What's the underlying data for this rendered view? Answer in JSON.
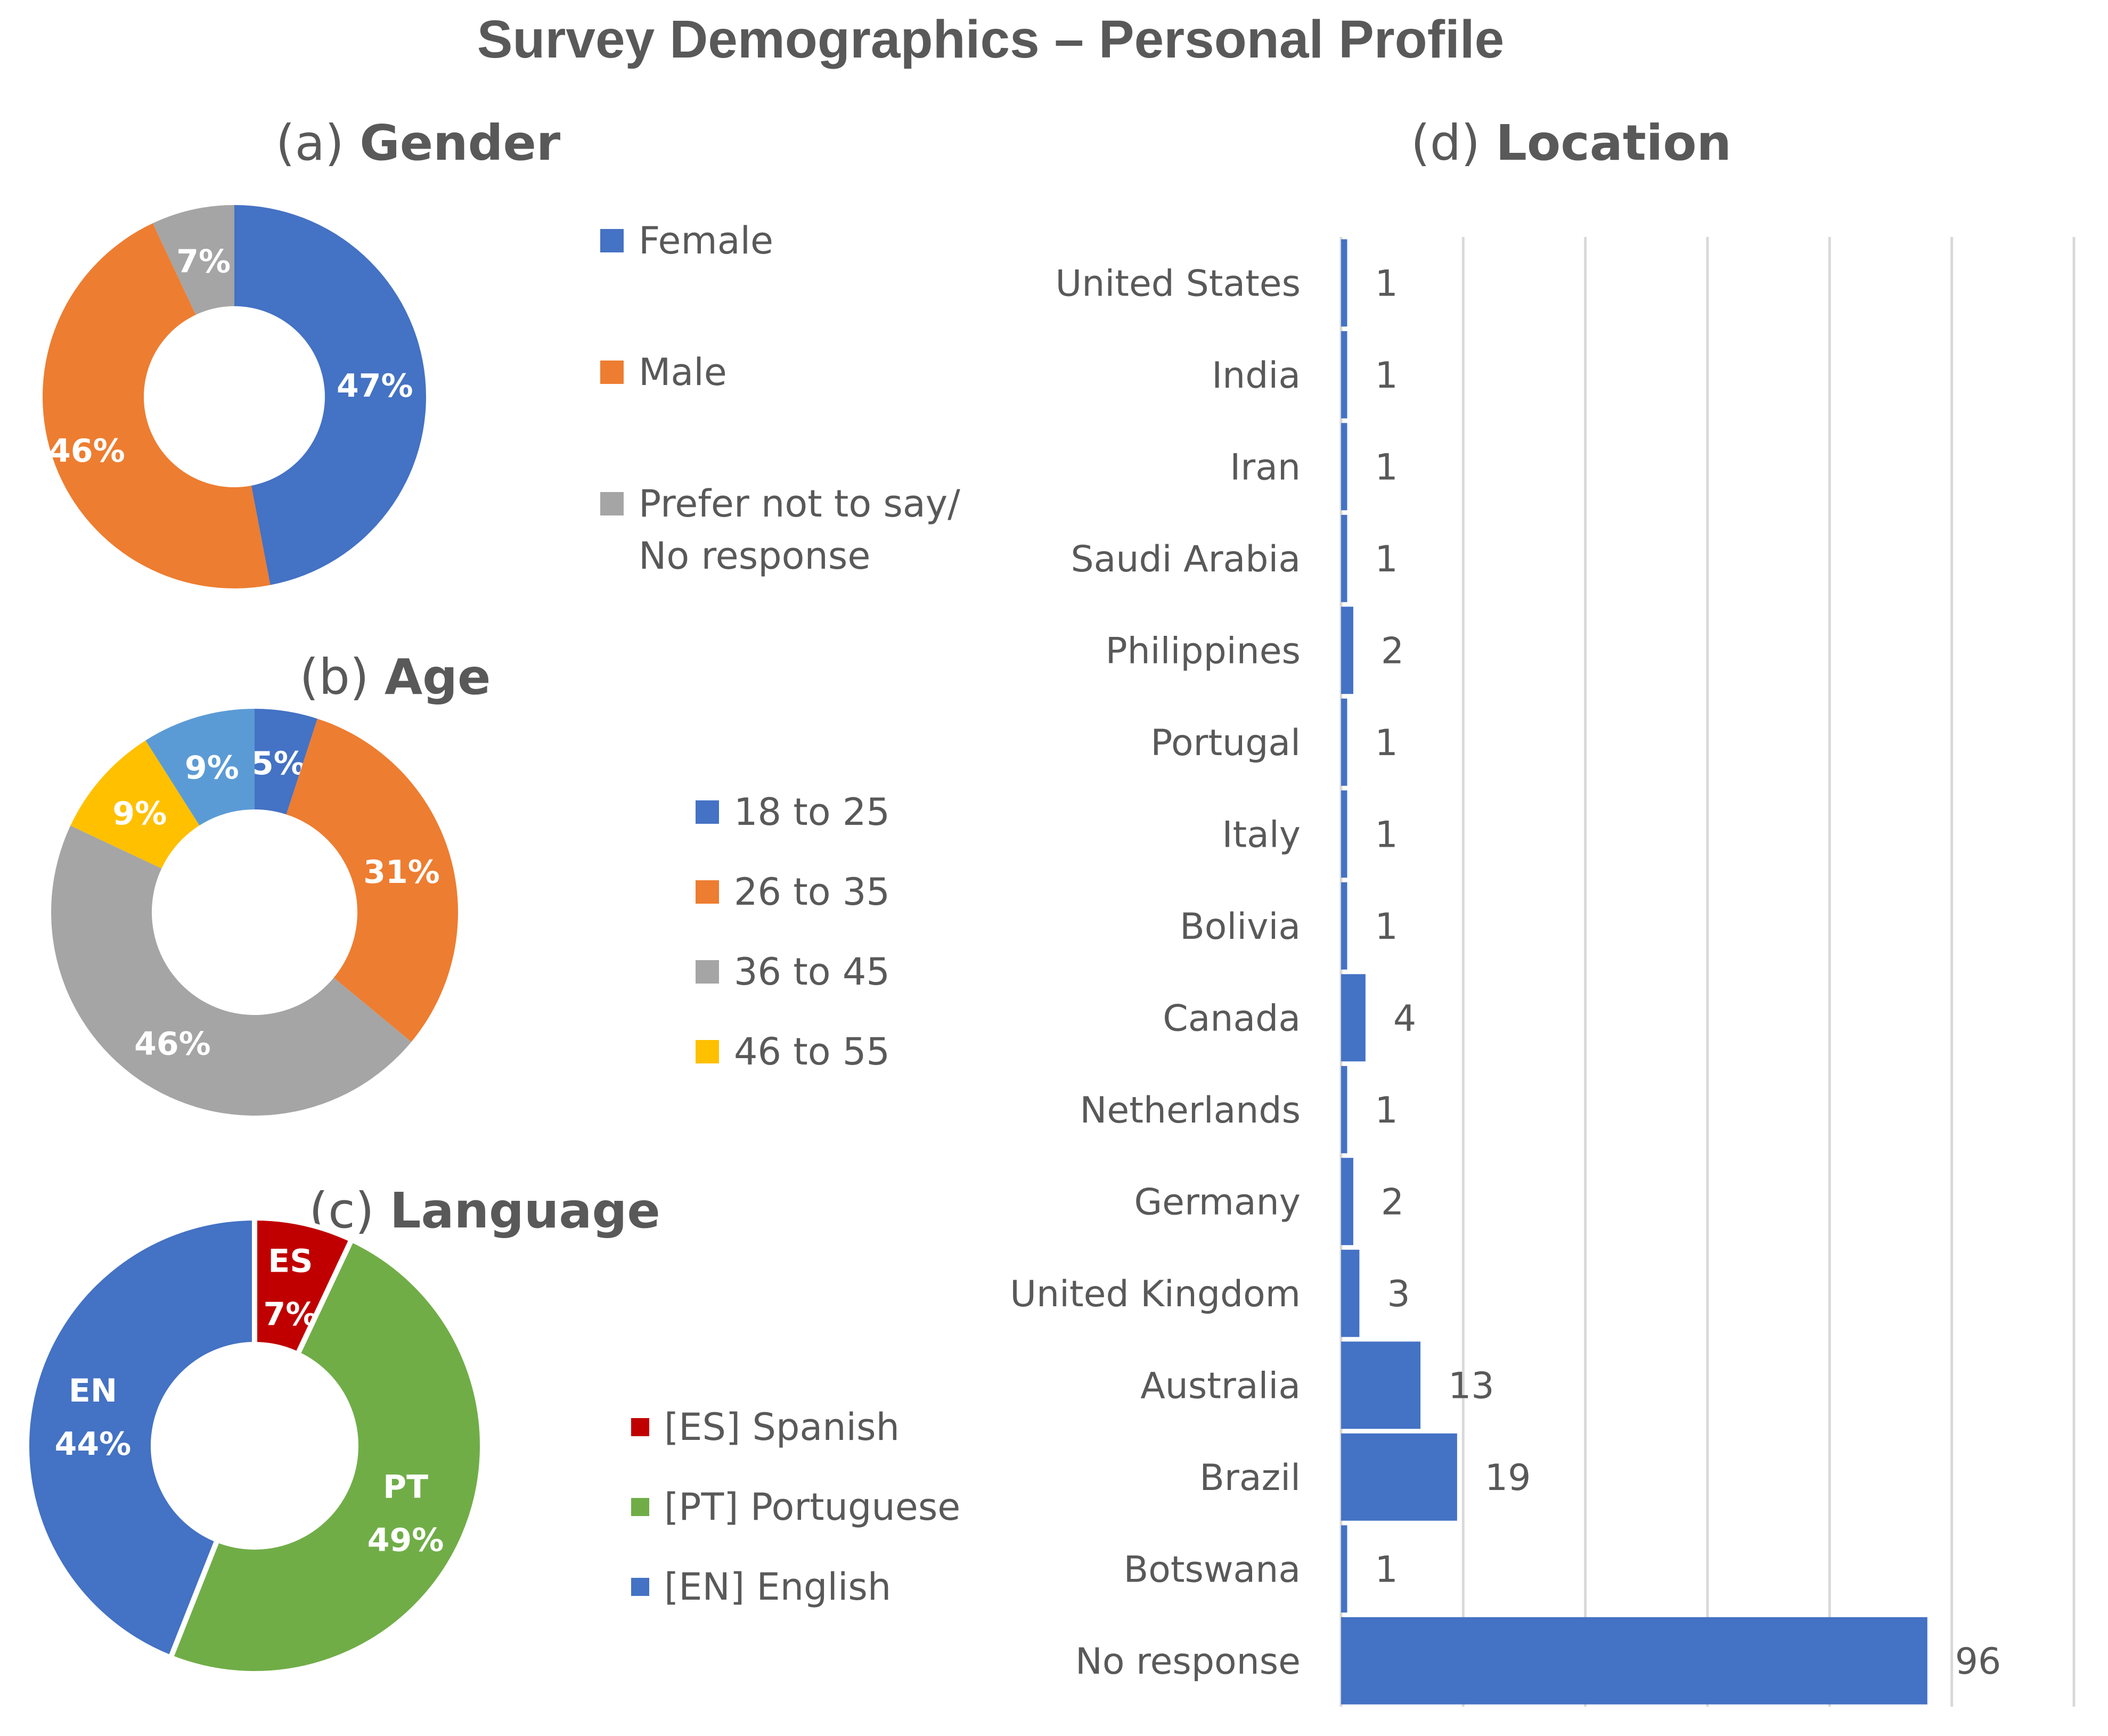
{
  "title": "Survey Demographics – Personal Profile",
  "chart_data": [
    {
      "type": "pie",
      "id": "gender",
      "title_prefix": "(a)",
      "title": "Gender",
      "donut": true,
      "slices": [
        {
          "label": "Female",
          "value": 47,
          "display": "47%",
          "color": "#4472C4"
        },
        {
          "label": "Male",
          "value": 46,
          "display": "46%",
          "color": "#ED7D31"
        },
        {
          "label": "Prefer not to say/\nNo response",
          "value": 7,
          "display": "7%",
          "color": "#A5A5A5"
        }
      ]
    },
    {
      "type": "pie",
      "id": "age",
      "title_prefix": "(b)",
      "title": "Age",
      "donut": true,
      "slices": [
        {
          "label": "18 to 25",
          "value": 5,
          "display": "5%",
          "color": "#4472C4"
        },
        {
          "label": "26 to 35",
          "value": 31,
          "display": "31%",
          "color": "#ED7D31"
        },
        {
          "label": "36 to 45",
          "value": 46,
          "display": "46%",
          "color": "#A5A5A5"
        },
        {
          "label": "46 to 55",
          "value": 9,
          "display": "9%",
          "color": "#FFC000"
        },
        {
          "label": "",
          "value": 9,
          "display": "9%",
          "color": "#5B9BD5"
        }
      ],
      "legend": [
        "18 to 25",
        "26 to 35",
        "36 to 45",
        "46 to 55"
      ]
    },
    {
      "type": "pie",
      "id": "language",
      "title_prefix": "(c)",
      "title": "Language",
      "donut": true,
      "slices": [
        {
          "label": "[ES] Spanish",
          "code": "ES",
          "value": 7,
          "display": "7%",
          "color": "#C00000"
        },
        {
          "label": "[PT] Portuguese",
          "code": "PT",
          "value": 49,
          "display": "49%",
          "color": "#70AD47"
        },
        {
          "label": "[EN] English",
          "code": "EN",
          "value": 44,
          "display": "44%",
          "color": "#4472C4"
        }
      ]
    },
    {
      "type": "bar",
      "orientation": "horizontal",
      "id": "location",
      "title_prefix": "(d)",
      "title": "Location",
      "color": "#4472C4",
      "categories": [
        "United States",
        "India",
        "Iran",
        "Saudi Arabia",
        "Philippines",
        "Portugal",
        "Italy",
        "Bolivia",
        "Canada",
        "Netherlands",
        "Germany",
        "United Kingdom",
        "Australia",
        "Brazil",
        "Botswana",
        "No response"
      ],
      "values": [
        1,
        1,
        1,
        1,
        2,
        1,
        1,
        1,
        4,
        1,
        2,
        3,
        13,
        19,
        1,
        96
      ],
      "xlim": [
        0,
        120
      ],
      "xticks": [
        0,
        20,
        40,
        60,
        80,
        100,
        120
      ],
      "grid": true
    }
  ]
}
